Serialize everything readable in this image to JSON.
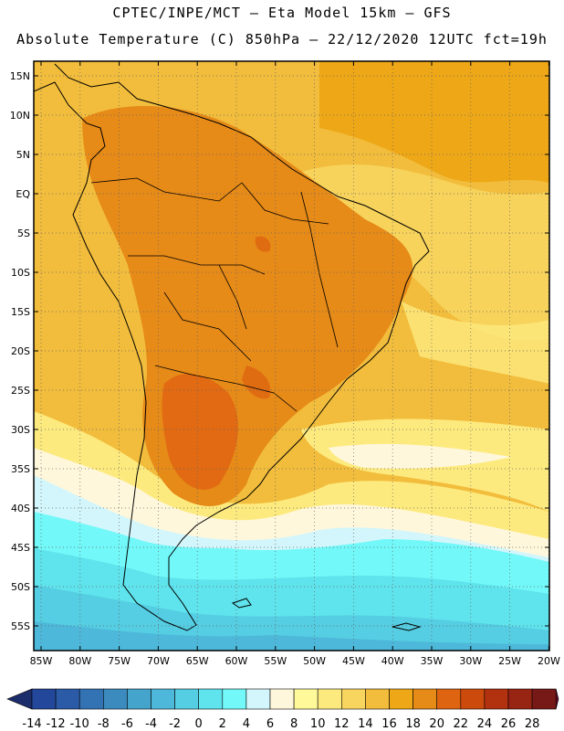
{
  "title": {
    "line1": "CPTEC/INPE/MCT –  Eta Model 15km – GFS",
    "line2": "Absolute Temperature (C) 850hPa – 22/12/2020 12UTC fct=19h"
  },
  "map": {
    "lat_labels": [
      "15N",
      "10N",
      "5N",
      "EQ",
      "5S",
      "10S",
      "15S",
      "20S",
      "25S",
      "30S",
      "35S",
      "40S",
      "45S",
      "50S",
      "55S"
    ],
    "lon_labels": [
      "85W",
      "80W",
      "75W",
      "70W",
      "65W",
      "60W",
      "55W",
      "50W",
      "45W",
      "40W",
      "35W",
      "30W",
      "25W",
      "20W"
    ]
  },
  "colorbar": {
    "labels": [
      "-14",
      "-12",
      "-10",
      "-8",
      "-6",
      "-4",
      "-2",
      "0",
      "2",
      "4",
      "6",
      "8",
      "10",
      "12",
      "14",
      "16",
      "18",
      "20",
      "22",
      "24",
      "26",
      "28"
    ],
    "colors": [
      "#23479a",
      "#2b5aa7",
      "#3473b3",
      "#3c8bbf",
      "#44a4cc",
      "#4db8d9",
      "#55cde2",
      "#5fe3ec",
      "#72f8f8",
      "#d2f6fb",
      "#fff7dc",
      "#fff99a",
      "#fdea7e",
      "#f7d55e",
      "#f2bd3c",
      "#eea716",
      "#e68a18",
      "#df6412",
      "#cc4a0c",
      "#b23210",
      "#982414",
      "#771a17"
    ],
    "under_color": "#1c2d6b",
    "over_color": "#6b0f28"
  }
}
